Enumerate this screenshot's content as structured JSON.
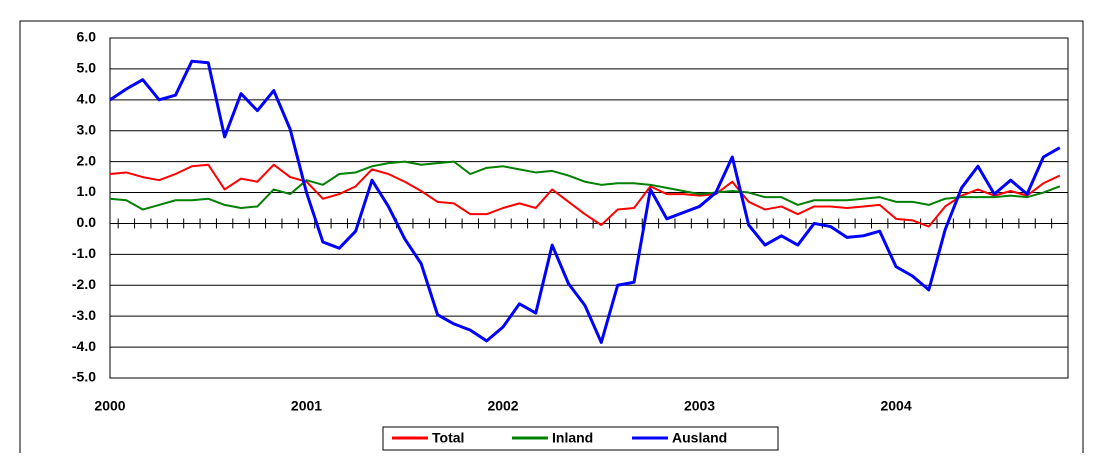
{
  "chart_data": {
    "type": "line",
    "categories": [
      "2000",
      null,
      null,
      null,
      null,
      null,
      null,
      null,
      null,
      null,
      null,
      null,
      "2001",
      null,
      null,
      null,
      null,
      null,
      null,
      null,
      null,
      null,
      null,
      null,
      "2002",
      null,
      null,
      null,
      null,
      null,
      null,
      null,
      null,
      null,
      null,
      null,
      "2003",
      null,
      null,
      null,
      null,
      null,
      null,
      null,
      null,
      null,
      null,
      null,
      "2004",
      null,
      null,
      null,
      null,
      null,
      null,
      null,
      null,
      null,
      null
    ],
    "series": [
      {
        "name": "Total",
        "color": "#ff0000",
        "values": [
          1.6,
          1.65,
          1.5,
          1.4,
          1.6,
          1.85,
          1.9,
          1.1,
          1.45,
          1.35,
          1.9,
          1.5,
          1.35,
          0.8,
          0.95,
          1.2,
          1.75,
          1.6,
          1.35,
          1.05,
          0.7,
          0.65,
          0.3,
          0.3,
          0.5,
          0.65,
          0.5,
          1.1,
          0.7,
          0.3,
          -0.05,
          0.45,
          0.5,
          1.2,
          0.95,
          0.95,
          0.9,
          0.95,
          1.35,
          0.7,
          0.45,
          0.55,
          0.3,
          0.55,
          0.55,
          0.5,
          0.55,
          0.6,
          0.15,
          0.1,
          -0.1,
          0.55,
          0.9,
          1.1,
          0.9,
          1.05,
          0.9,
          1.3,
          1.55
        ]
      },
      {
        "name": "Inland",
        "color": "#008000",
        "values": [
          0.8,
          0.75,
          0.45,
          0.6,
          0.75,
          0.75,
          0.8,
          0.6,
          0.5,
          0.55,
          1.1,
          0.95,
          1.4,
          1.25,
          1.6,
          1.65,
          1.85,
          1.95,
          2.0,
          1.9,
          1.95,
          2.0,
          1.6,
          1.8,
          1.85,
          1.75,
          1.65,
          1.7,
          1.55,
          1.35,
          1.25,
          1.3,
          1.3,
          1.25,
          1.15,
          1.05,
          0.95,
          1.0,
          1.05,
          1.0,
          0.85,
          0.85,
          0.6,
          0.75,
          0.75,
          0.75,
          0.8,
          0.85,
          0.7,
          0.7,
          0.6,
          0.8,
          0.85,
          0.85,
          0.85,
          0.9,
          0.85,
          1.0,
          1.2
        ]
      },
      {
        "name": "Ausland",
        "color": "#0000ff",
        "values": [
          4.0,
          4.35,
          4.65,
          4.0,
          4.15,
          5.25,
          5.2,
          2.8,
          4.2,
          3.65,
          4.3,
          3.05,
          1.0,
          -0.6,
          -0.8,
          -0.25,
          1.4,
          0.55,
          -0.5,
          -1.3,
          -2.95,
          -3.25,
          -3.45,
          -3.8,
          -3.35,
          -2.6,
          -2.9,
          -0.7,
          -1.95,
          -2.65,
          -3.85,
          -2.0,
          -1.9,
          1.1,
          0.15,
          0.35,
          0.55,
          1.0,
          2.15,
          -0.05,
          -0.7,
          -0.4,
          -0.7,
          0.0,
          -0.1,
          -0.45,
          -0.4,
          -0.25,
          -1.4,
          -1.7,
          -2.15,
          -0.2,
          1.15,
          1.85,
          0.95,
          1.4,
          0.95,
          2.15,
          2.45
        ]
      }
    ],
    "ylim": [
      -5,
      6
    ],
    "yticks": [
      {
        "value": -5,
        "label": "-5.0"
      },
      {
        "value": -4,
        "label": "-4.0"
      },
      {
        "value": -3,
        "label": "-3.0"
      },
      {
        "value": -2,
        "label": "-2.0"
      },
      {
        "value": -1,
        "label": "-1.0"
      },
      {
        "value": 0,
        "label": "0.0"
      },
      {
        "value": 1,
        "label": "1.0"
      },
      {
        "value": 2,
        "label": "2.0"
      },
      {
        "value": 3,
        "label": "3.0"
      },
      {
        "value": 4,
        "label": "4.0"
      },
      {
        "value": 5,
        "label": "5.0"
      },
      {
        "value": 6,
        "label": "6.0"
      }
    ],
    "grid": true
  }
}
